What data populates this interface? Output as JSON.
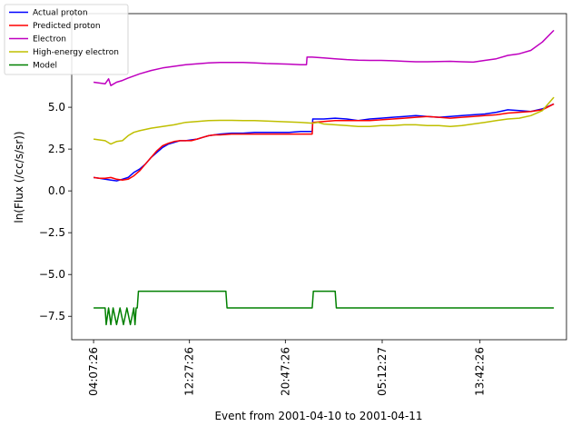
{
  "chart_data": {
    "type": "line",
    "title": "",
    "xlabel": "Event from 2001-04-10 to 2001-04-11",
    "ylabel": "ln(Flux (/cc/s/sr))",
    "x_tick_labels": [
      "04:07:26",
      "12:27:26",
      "20:47:26",
      "05:12:27",
      "13:42:26"
    ],
    "x_tick_hours": [
      0,
      8.333,
      16.667,
      25.083,
      33.583
    ],
    "x_range_hours": [
      -1.9,
      41.1
    ],
    "ylim": [
      -8.9,
      10.6
    ],
    "y_ticks": [
      -7.5,
      -5.0,
      -2.5,
      0.0,
      2.5,
      5.0
    ],
    "y_tick_labels": [
      "−7.5",
      "−5.0",
      "−2.5",
      "0.0",
      "2.5",
      "5.0"
    ],
    "grid": false,
    "legend_position": "top-left",
    "series": [
      {
        "name": "Actual proton",
        "color": "#0000ff",
        "points": [
          [
            0,
            0.8
          ],
          [
            0.5,
            0.75
          ],
          [
            1,
            0.7
          ],
          [
            1.5,
            0.65
          ],
          [
            2,
            0.6
          ],
          [
            2.5,
            0.7
          ],
          [
            3,
            0.8
          ],
          [
            3.5,
            1.1
          ],
          [
            4,
            1.3
          ],
          [
            4.5,
            1.6
          ],
          [
            5,
            2.0
          ],
          [
            5.5,
            2.3
          ],
          [
            6,
            2.6
          ],
          [
            6.5,
            2.8
          ],
          [
            7,
            2.9
          ],
          [
            7.5,
            3.0
          ],
          [
            8,
            3.0
          ],
          [
            8.5,
            3.05
          ],
          [
            9,
            3.1
          ],
          [
            9.5,
            3.2
          ],
          [
            10,
            3.3
          ],
          [
            10.5,
            3.35
          ],
          [
            11,
            3.4
          ],
          [
            12,
            3.45
          ],
          [
            13,
            3.45
          ],
          [
            14,
            3.5
          ],
          [
            15,
            3.5
          ],
          [
            16,
            3.5
          ],
          [
            17,
            3.5
          ],
          [
            18,
            3.55
          ],
          [
            19,
            3.55
          ],
          [
            19.05,
            4.3
          ],
          [
            20,
            4.3
          ],
          [
            21,
            4.35
          ],
          [
            22,
            4.3
          ],
          [
            23,
            4.2
          ],
          [
            24,
            4.3
          ],
          [
            25,
            4.35
          ],
          [
            26,
            4.4
          ],
          [
            27,
            4.45
          ],
          [
            28,
            4.5
          ],
          [
            29,
            4.45
          ],
          [
            30,
            4.4
          ],
          [
            31,
            4.45
          ],
          [
            32,
            4.5
          ],
          [
            33,
            4.55
          ],
          [
            34,
            4.6
          ],
          [
            35,
            4.7
          ],
          [
            36,
            4.85
          ],
          [
            37,
            4.8
          ],
          [
            38,
            4.75
          ],
          [
            39,
            4.9
          ],
          [
            40,
            5.2
          ]
        ]
      },
      {
        "name": "Predicted proton",
        "color": "#ff0000",
        "points": [
          [
            0,
            0.8
          ],
          [
            0.5,
            0.75
          ],
          [
            1,
            0.75
          ],
          [
            1.5,
            0.8
          ],
          [
            2,
            0.7
          ],
          [
            2.5,
            0.65
          ],
          [
            3,
            0.7
          ],
          [
            3.5,
            0.9
          ],
          [
            4,
            1.2
          ],
          [
            4.5,
            1.6
          ],
          [
            5,
            2.0
          ],
          [
            5.5,
            2.4
          ],
          [
            6,
            2.7
          ],
          [
            6.5,
            2.85
          ],
          [
            7,
            2.95
          ],
          [
            7.5,
            3.0
          ],
          [
            8,
            3.0
          ],
          [
            8.5,
            3.0
          ],
          [
            9,
            3.1
          ],
          [
            9.5,
            3.2
          ],
          [
            10,
            3.3
          ],
          [
            10.5,
            3.35
          ],
          [
            11,
            3.35
          ],
          [
            12,
            3.4
          ],
          [
            13,
            3.4
          ],
          [
            14,
            3.4
          ],
          [
            15,
            3.4
          ],
          [
            16,
            3.4
          ],
          [
            17,
            3.4
          ],
          [
            18,
            3.4
          ],
          [
            19,
            3.4
          ],
          [
            19.05,
            4.1
          ],
          [
            20,
            4.15
          ],
          [
            21,
            4.2
          ],
          [
            22,
            4.2
          ],
          [
            23,
            4.2
          ],
          [
            24,
            4.2
          ],
          [
            25,
            4.25
          ],
          [
            26,
            4.3
          ],
          [
            27,
            4.35
          ],
          [
            28,
            4.4
          ],
          [
            29,
            4.45
          ],
          [
            30,
            4.4
          ],
          [
            31,
            4.35
          ],
          [
            32,
            4.4
          ],
          [
            33,
            4.45
          ],
          [
            34,
            4.5
          ],
          [
            35,
            4.55
          ],
          [
            36,
            4.65
          ],
          [
            37,
            4.7
          ],
          [
            38,
            4.75
          ],
          [
            39,
            4.85
          ],
          [
            40,
            5.2
          ]
        ]
      },
      {
        "name": "Electron",
        "color": "#bf00bf",
        "points": [
          [
            0,
            6.5
          ],
          [
            0.5,
            6.45
          ],
          [
            1,
            6.4
          ],
          [
            1.3,
            6.7
          ],
          [
            1.5,
            6.3
          ],
          [
            2,
            6.5
          ],
          [
            2.5,
            6.6
          ],
          [
            3,
            6.75
          ],
          [
            4,
            7.0
          ],
          [
            5,
            7.2
          ],
          [
            6,
            7.35
          ],
          [
            7,
            7.45
          ],
          [
            8,
            7.55
          ],
          [
            9,
            7.6
          ],
          [
            10,
            7.65
          ],
          [
            11,
            7.68
          ],
          [
            12,
            7.68
          ],
          [
            13,
            7.68
          ],
          [
            14,
            7.65
          ],
          [
            15,
            7.62
          ],
          [
            16,
            7.6
          ],
          [
            17,
            7.58
          ],
          [
            18,
            7.55
          ],
          [
            18.5,
            7.55
          ],
          [
            18.55,
            8.0
          ],
          [
            19,
            8.0
          ],
          [
            20,
            7.95
          ],
          [
            21,
            7.9
          ],
          [
            22,
            7.85
          ],
          [
            23,
            7.82
          ],
          [
            24,
            7.8
          ],
          [
            25,
            7.8
          ],
          [
            26,
            7.78
          ],
          [
            27,
            7.75
          ],
          [
            28,
            7.72
          ],
          [
            29,
            7.72
          ],
          [
            30,
            7.73
          ],
          [
            31,
            7.75
          ],
          [
            32,
            7.72
          ],
          [
            33,
            7.7
          ],
          [
            34,
            7.8
          ],
          [
            35,
            7.9
          ],
          [
            36,
            8.1
          ],
          [
            37,
            8.2
          ],
          [
            38,
            8.4
          ],
          [
            39,
            8.9
          ],
          [
            40,
            9.6
          ]
        ]
      },
      {
        "name": "High-energy electron",
        "color": "#bfbf00",
        "points": [
          [
            0,
            3.1
          ],
          [
            0.5,
            3.05
          ],
          [
            1,
            3.0
          ],
          [
            1.5,
            2.8
          ],
          [
            2,
            2.95
          ],
          [
            2.5,
            3.0
          ],
          [
            3,
            3.3
          ],
          [
            3.5,
            3.5
          ],
          [
            4,
            3.6
          ],
          [
            5,
            3.75
          ],
          [
            6,
            3.85
          ],
          [
            7,
            3.95
          ],
          [
            8,
            4.1
          ],
          [
            9,
            4.15
          ],
          [
            10,
            4.2
          ],
          [
            11,
            4.22
          ],
          [
            12,
            4.22
          ],
          [
            13,
            4.2
          ],
          [
            14,
            4.2
          ],
          [
            15,
            4.18
          ],
          [
            16,
            4.15
          ],
          [
            17,
            4.12
          ],
          [
            18,
            4.1
          ],
          [
            19,
            4.05
          ],
          [
            19.5,
            4.1
          ],
          [
            20,
            4.0
          ],
          [
            21,
            3.95
          ],
          [
            22,
            3.9
          ],
          [
            23,
            3.85
          ],
          [
            24,
            3.85
          ],
          [
            25,
            3.9
          ],
          [
            26,
            3.9
          ],
          [
            27,
            3.95
          ],
          [
            28,
            3.95
          ],
          [
            29,
            3.9
          ],
          [
            30,
            3.9
          ],
          [
            31,
            3.85
          ],
          [
            32,
            3.9
          ],
          [
            33,
            4.0
          ],
          [
            34,
            4.1
          ],
          [
            35,
            4.2
          ],
          [
            36,
            4.3
          ],
          [
            37,
            4.35
          ],
          [
            38,
            4.5
          ],
          [
            39,
            4.8
          ],
          [
            40,
            5.6
          ]
        ]
      },
      {
        "name": "Model",
        "color": "#008000",
        "points": [
          [
            0,
            -7
          ],
          [
            1,
            -7
          ],
          [
            1.1,
            -8
          ],
          [
            1.3,
            -7
          ],
          [
            1.5,
            -8
          ],
          [
            1.7,
            -7
          ],
          [
            2,
            -8
          ],
          [
            2.3,
            -7
          ],
          [
            2.6,
            -8
          ],
          [
            2.9,
            -7
          ],
          [
            3.2,
            -8
          ],
          [
            3.5,
            -7
          ],
          [
            3.6,
            -8
          ],
          [
            3.7,
            -7
          ],
          [
            3.8,
            -7
          ],
          [
            3.9,
            -6
          ],
          [
            11.5,
            -6
          ],
          [
            11.6,
            -7
          ],
          [
            19,
            -7
          ],
          [
            19.1,
            -6
          ],
          [
            21,
            -6
          ],
          [
            21.1,
            -7
          ],
          [
            40,
            -7
          ]
        ]
      }
    ]
  }
}
